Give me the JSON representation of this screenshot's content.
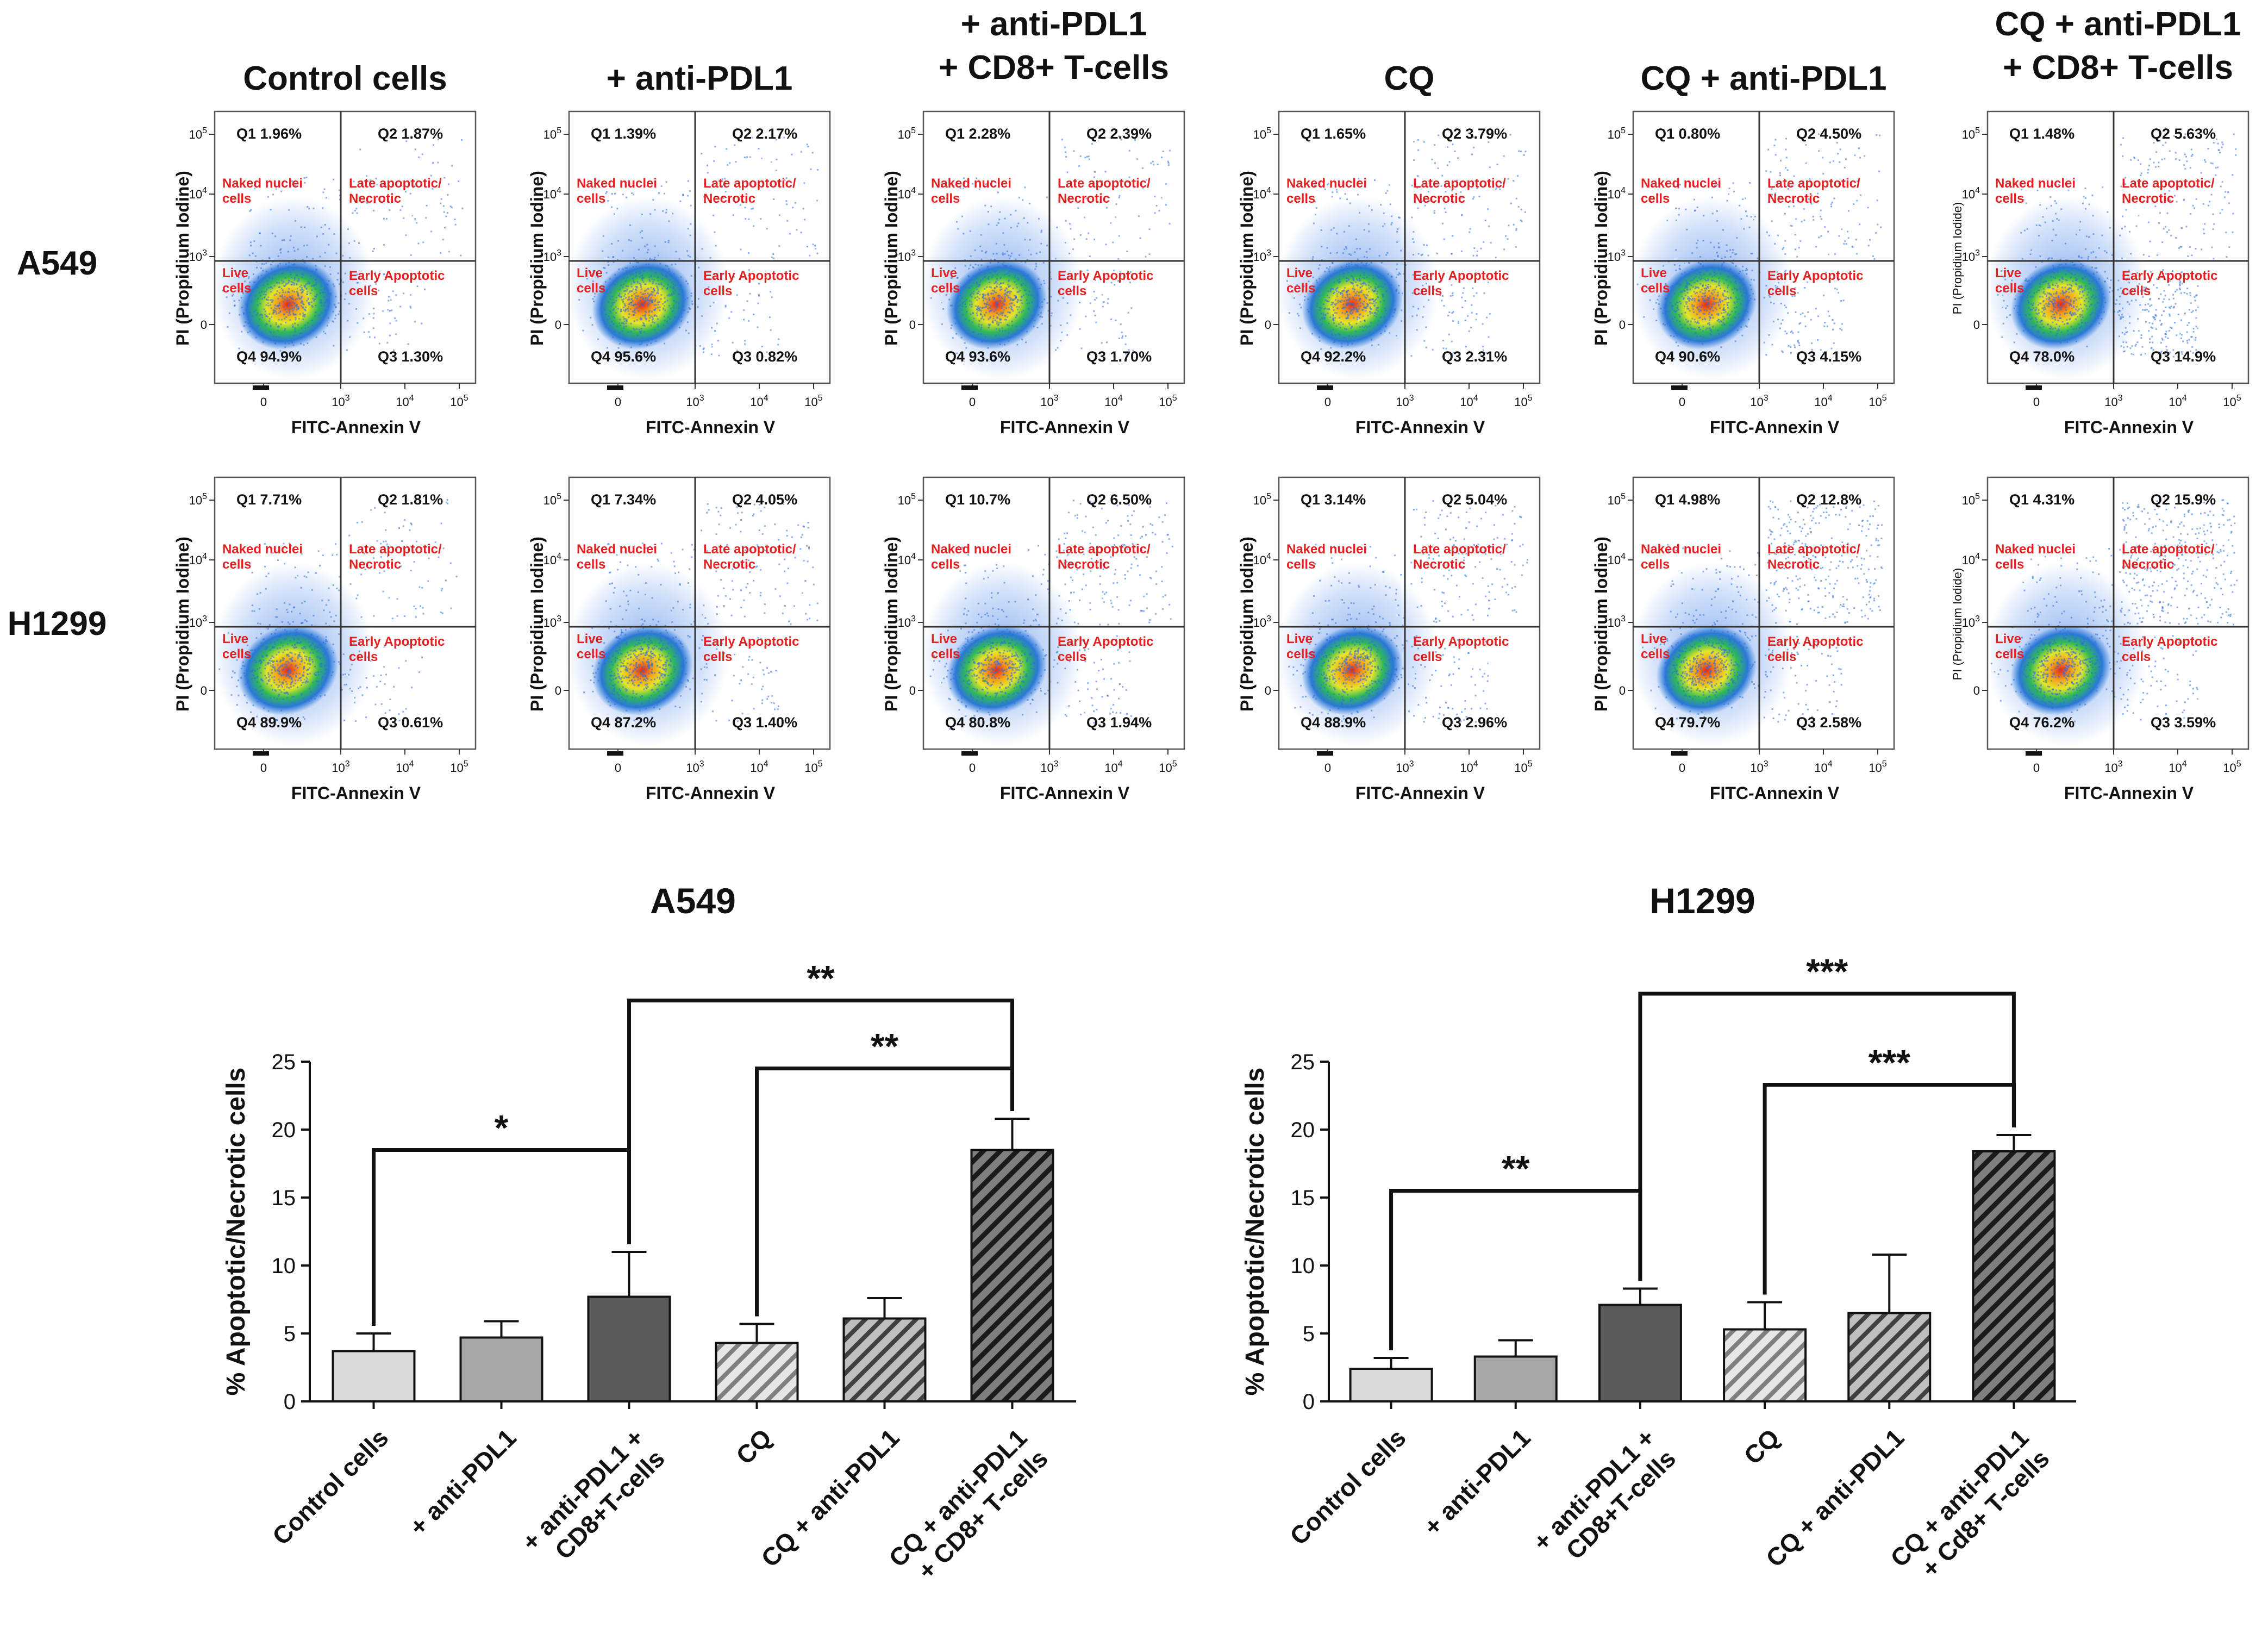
{
  "flow": {
    "columns": [
      "Control cells",
      "+ anti-PDL1",
      "+ anti-PDL1\n+ CD8+ T-cells",
      "CQ",
      "CQ + anti-PDL1",
      "CQ + anti-PDL1\n+ CD8+ T-cells"
    ],
    "xlabel": "FITC-Annexin V",
    "ylabel": "PI (Propidium Iodine)",
    "ylabel_alt": "PI (Propidium Iodide)",
    "quadrant_labels": {
      "naked": "Naked nuclei\ncells",
      "late": "Late apoptotic/\nNecrotic",
      "live": "Live\ncells",
      "early": "Early Apoptotic\ncells"
    },
    "x_ticks": [
      "0",
      "10^3",
      "10^4",
      "10^5"
    ],
    "y_ticks": [
      "0",
      "10^3",
      "10^4",
      "10^5"
    ],
    "rows": [
      {
        "label": "A549",
        "panels": [
          {
            "Q1": "1.96%",
            "Q2": "1.87%",
            "Q3": "1.30%",
            "Q4": "94.9%"
          },
          {
            "Q1": "1.39%",
            "Q2": "2.17%",
            "Q3": "0.82%",
            "Q4": "95.6%"
          },
          {
            "Q1": "2.28%",
            "Q2": "2.39%",
            "Q3": "1.70%",
            "Q4": "93.6%"
          },
          {
            "Q1": "1.65%",
            "Q2": "3.79%",
            "Q3": "2.31%",
            "Q4": "92.2%"
          },
          {
            "Q1": "0.80%",
            "Q2": "4.50%",
            "Q3": "4.15%",
            "Q4": "90.6%"
          },
          {
            "Q1": "1.48%",
            "Q2": "5.63%",
            "Q3": "14.9%",
            "Q4": "78.0%"
          }
        ]
      },
      {
        "label": "H1299",
        "panels": [
          {
            "Q1": "7.71%",
            "Q2": "1.81%",
            "Q3": "0.61%",
            "Q4": "89.9%"
          },
          {
            "Q1": "7.34%",
            "Q2": "4.05%",
            "Q3": "1.40%",
            "Q4": "87.2%"
          },
          {
            "Q1": "10.7%",
            "Q2": "6.50%",
            "Q3": "1.94%",
            "Q4": "80.8%"
          },
          {
            "Q1": "3.14%",
            "Q2": "5.04%",
            "Q3": "2.96%",
            "Q4": "88.9%"
          },
          {
            "Q1": "4.98%",
            "Q2": "12.8%",
            "Q3": "2.58%",
            "Q4": "79.7%"
          },
          {
            "Q1": "4.31%",
            "Q2": "15.9%",
            "Q3": "3.59%",
            "Q4": "76.2%"
          }
        ]
      }
    ]
  },
  "chart_data": [
    {
      "type": "bar",
      "title": "A549",
      "ylabel": "% Apoptotic/Necrotic cells",
      "xlabel": "",
      "ylim": [
        0,
        25
      ],
      "yticks": [
        0,
        5,
        10,
        15,
        20,
        25
      ],
      "categories": [
        "Control cells",
        "+ anti-PDL1",
        "+ anti-PDL1 +\nCD8+T-cells",
        "CQ",
        "CQ + anti-PDL1",
        "CQ + anti-PDL1\n+ CD8+ T-cells"
      ],
      "values": [
        3.7,
        4.7,
        7.7,
        4.3,
        6.1,
        18.5
      ],
      "errors": [
        1.3,
        1.2,
        3.3,
        1.4,
        1.5,
        2.3
      ],
      "fills": [
        "#d9d9d9",
        "#a6a6a6",
        "#595959",
        "hatch-light",
        "hatch-mid",
        "hatch-dark"
      ],
      "significance": [
        {
          "from": 0,
          "to": 2,
          "label": "*",
          "y": 18.5
        },
        {
          "from": 3,
          "to": 5,
          "label": "**",
          "y": 24.5
        },
        {
          "from": 2,
          "to": 5,
          "label": "**",
          "y": 29.5
        }
      ]
    },
    {
      "type": "bar",
      "title": "H1299",
      "ylabel": "% Apoptotic/Necrotic cells",
      "xlabel": "",
      "ylim": [
        0,
        25
      ],
      "yticks": [
        0,
        5,
        10,
        15,
        20,
        25
      ],
      "categories": [
        "Control cells",
        "+ anti-PDL1",
        "+ anti-PDL1 +\nCD8+T-cells",
        "CQ",
        "CQ + anti-PDL1",
        "CQ + anti-PDL1\n+ Cd8+ T-cells"
      ],
      "values": [
        2.4,
        3.3,
        7.1,
        5.3,
        6.5,
        18.4
      ],
      "errors": [
        0.8,
        1.2,
        1.2,
        2.0,
        4.3,
        1.2
      ],
      "fills": [
        "#d9d9d9",
        "#a6a6a6",
        "#595959",
        "hatch-light",
        "hatch-mid",
        "hatch-dark"
      ],
      "significance": [
        {
          "from": 0,
          "to": 2,
          "label": "**",
          "y": 15.5
        },
        {
          "from": 3,
          "to": 5,
          "label": "***",
          "y": 23.3
        },
        {
          "from": 2,
          "to": 5,
          "label": "***",
          "y": 30.0
        }
      ]
    }
  ]
}
